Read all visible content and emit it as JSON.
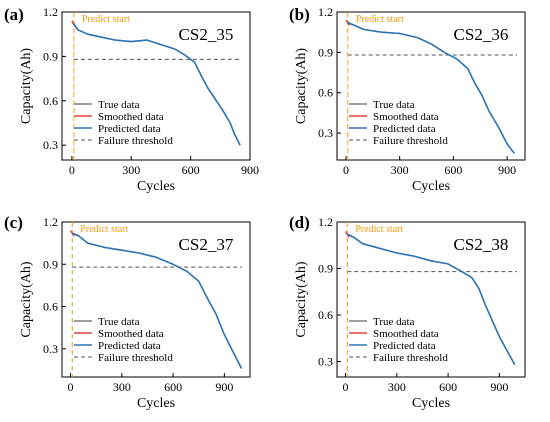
{
  "colors": {
    "true": "#7f7f7f",
    "smoothed": "#e8453c",
    "predicted": "#2e75b6",
    "threshold": "#555555",
    "predict_line": "#f39c12"
  },
  "legend": [
    "True data",
    "Smoothed data",
    "Predicted data",
    "Failure threshold"
  ],
  "chart_data": [
    {
      "type": "line",
      "letter": "(a)",
      "title": "CS2_35",
      "xlabel": "Cycles",
      "ylabel": "Capacity(Ah)",
      "xlim": [
        -50,
        900
      ],
      "ylim": [
        0.2,
        1.2
      ],
      "xticks": [
        0,
        300,
        600,
        900
      ],
      "yticks": [
        0.3,
        0.6,
        0.9,
        1.2
      ],
      "tick_labels_x": [
        "0",
        "300",
        "600",
        "900"
      ],
      "tick_labels_y": [
        "0.3",
        "0.6",
        "0.9",
        "1.2"
      ],
      "predict_start_label": "Predict start",
      "predict_start": 10,
      "failure_threshold": 0.88,
      "series": [
        {
          "name": "True data",
          "x": [
            0,
            30,
            80,
            150,
            220,
            300,
            380,
            450,
            520,
            570,
            600,
            620,
            650,
            690,
            720,
            760,
            800,
            820,
            850
          ],
          "y": [
            1.13,
            1.08,
            1.05,
            1.03,
            1.01,
            1.0,
            1.01,
            0.98,
            0.95,
            0.91,
            0.88,
            0.86,
            0.78,
            0.68,
            0.62,
            0.54,
            0.45,
            0.38,
            0.3
          ]
        },
        {
          "name": "Smoothed data",
          "x": [
            0,
            10,
            20
          ],
          "y": [
            1.14,
            1.12,
            1.1
          ]
        },
        {
          "name": "Predicted data",
          "x": [
            10,
            30,
            80,
            150,
            220,
            300,
            380,
            450,
            520,
            570,
            600,
            620,
            650,
            690,
            720,
            760,
            800,
            820,
            850
          ],
          "y": [
            1.12,
            1.08,
            1.05,
            1.03,
            1.01,
            1.0,
            1.01,
            0.98,
            0.95,
            0.91,
            0.88,
            0.86,
            0.78,
            0.68,
            0.62,
            0.54,
            0.45,
            0.38,
            0.3
          ]
        }
      ]
    },
    {
      "type": "line",
      "letter": "(b)",
      "title": "CS2_36",
      "xlabel": "Cycles",
      "ylabel": "Capacity(Ah)",
      "xlim": [
        -50,
        1000
      ],
      "ylim": [
        0.1,
        1.2
      ],
      "xticks": [
        0,
        300,
        600,
        900
      ],
      "yticks": [
        0.3,
        0.6,
        0.9,
        1.2
      ],
      "tick_labels_x": [
        "0",
        "300",
        "600",
        "900"
      ],
      "tick_labels_y": [
        "0.3",
        "0.6",
        "0.9",
        "1.2"
      ],
      "predict_start_label": "Predict start",
      "predict_start": 10,
      "failure_threshold": 0.88,
      "series": [
        {
          "name": "True data",
          "x": [
            0,
            50,
            100,
            200,
            300,
            400,
            480,
            550,
            620,
            680,
            720,
            760,
            800,
            850,
            900,
            940
          ],
          "y": [
            1.13,
            1.1,
            1.07,
            1.05,
            1.04,
            1.01,
            0.96,
            0.9,
            0.85,
            0.78,
            0.67,
            0.58,
            0.46,
            0.35,
            0.22,
            0.15
          ]
        },
        {
          "name": "Smoothed data",
          "x": [
            0,
            10,
            20
          ],
          "y": [
            1.14,
            1.12,
            1.1
          ]
        },
        {
          "name": "Predicted data",
          "x": [
            10,
            50,
            100,
            200,
            300,
            400,
            480,
            550,
            620,
            680,
            720,
            760,
            800,
            850,
            900,
            940
          ],
          "y": [
            1.12,
            1.1,
            1.07,
            1.05,
            1.04,
            1.01,
            0.96,
            0.9,
            0.85,
            0.78,
            0.67,
            0.58,
            0.46,
            0.35,
            0.22,
            0.15
          ]
        }
      ]
    },
    {
      "type": "line",
      "letter": "(c)",
      "title": "CS2_37",
      "xlabel": "Cycles",
      "ylabel": "Capacity(Ah)",
      "xlim": [
        -50,
        1050
      ],
      "ylim": [
        0.1,
        1.2
      ],
      "xticks": [
        0,
        300,
        600,
        900
      ],
      "yticks": [
        0.3,
        0.6,
        0.9,
        1.2
      ],
      "tick_labels_x": [
        "0",
        "300",
        "600",
        "900"
      ],
      "tick_labels_y": [
        "0.3",
        "0.6",
        "0.9",
        "1.2"
      ],
      "predict_start_label": "Predict start",
      "predict_start": 10,
      "failure_threshold": 0.88,
      "series": [
        {
          "name": "True data",
          "x": [
            0,
            50,
            100,
            200,
            300,
            400,
            500,
            600,
            680,
            750,
            800,
            850,
            900,
            950,
            1000
          ],
          "y": [
            1.13,
            1.1,
            1.05,
            1.02,
            1.0,
            0.98,
            0.95,
            0.9,
            0.85,
            0.78,
            0.66,
            0.55,
            0.4,
            0.28,
            0.16
          ]
        },
        {
          "name": "Smoothed data",
          "x": [
            0,
            10,
            20
          ],
          "y": [
            1.14,
            1.12,
            1.1
          ]
        },
        {
          "name": "Predicted data",
          "x": [
            10,
            50,
            100,
            200,
            300,
            400,
            500,
            600,
            680,
            750,
            800,
            850,
            900,
            950,
            1000
          ],
          "y": [
            1.12,
            1.1,
            1.05,
            1.02,
            1.0,
            0.98,
            0.95,
            0.9,
            0.85,
            0.78,
            0.66,
            0.55,
            0.4,
            0.28,
            0.16
          ]
        }
      ]
    },
    {
      "type": "line",
      "letter": "(d)",
      "title": "CS2_38",
      "xlabel": "Cycles",
      "ylabel": "Capacity(Ah)",
      "xlim": [
        -50,
        1050
      ],
      "ylim": [
        0.2,
        1.2
      ],
      "xticks": [
        0,
        300,
        600,
        900
      ],
      "yticks": [
        0.3,
        0.6,
        0.9,
        1.2
      ],
      "tick_labels_x": [
        "0",
        "300",
        "600",
        "900"
      ],
      "tick_labels_y": [
        "0.3",
        "0.6",
        "0.9",
        "1.2"
      ],
      "predict_start_label": "Predict start",
      "predict_start": 10,
      "failure_threshold": 0.88,
      "series": [
        {
          "name": "True data",
          "x": [
            0,
            50,
            100,
            200,
            300,
            400,
            500,
            600,
            680,
            740,
            780,
            820,
            860,
            900,
            950,
            990
          ],
          "y": [
            1.13,
            1.1,
            1.06,
            1.03,
            1.0,
            0.98,
            0.95,
            0.93,
            0.88,
            0.84,
            0.77,
            0.66,
            0.56,
            0.46,
            0.36,
            0.28
          ]
        },
        {
          "name": "Smoothed data",
          "x": [
            0,
            10,
            20
          ],
          "y": [
            1.14,
            1.12,
            1.1
          ]
        },
        {
          "name": "Predicted data",
          "x": [
            10,
            50,
            100,
            200,
            300,
            400,
            500,
            600,
            680,
            740,
            780,
            820,
            860,
            900,
            950,
            990
          ],
          "y": [
            1.12,
            1.1,
            1.06,
            1.03,
            1.0,
            0.98,
            0.95,
            0.93,
            0.88,
            0.84,
            0.77,
            0.66,
            0.56,
            0.46,
            0.36,
            0.28
          ]
        }
      ]
    }
  ]
}
